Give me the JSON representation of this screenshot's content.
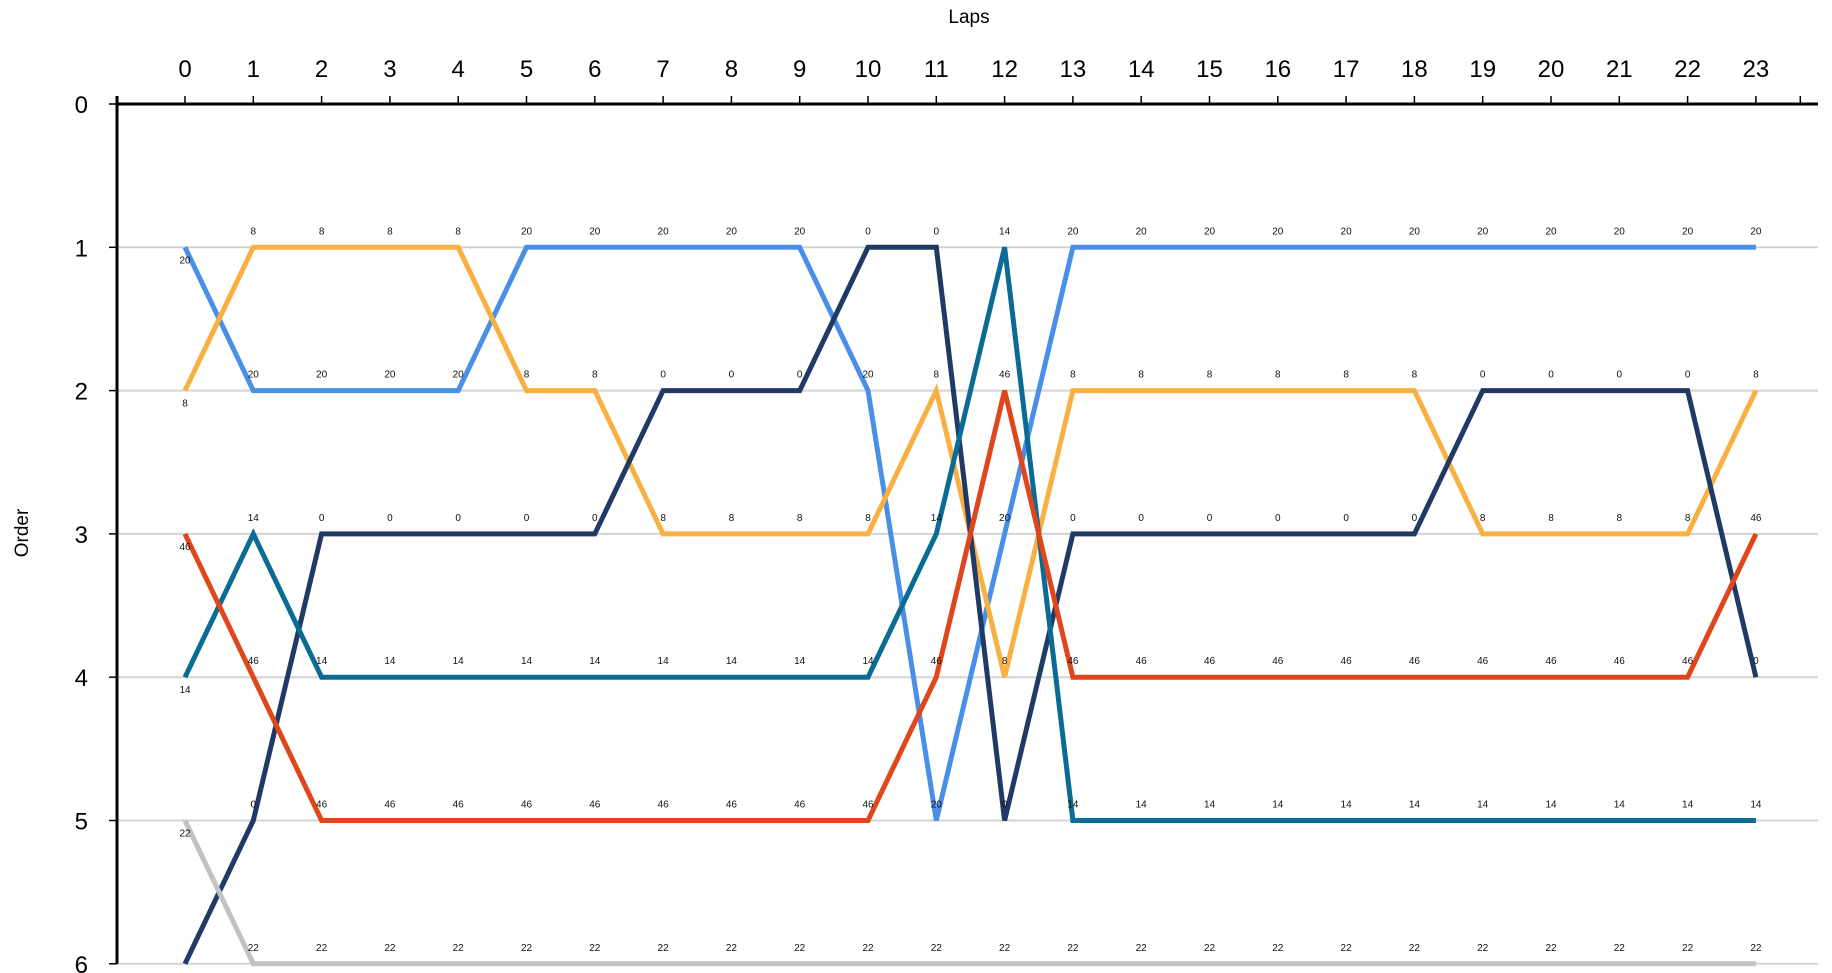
{
  "chart_data": {
    "type": "line",
    "xlabel": "Laps",
    "ylabel": "Order",
    "x": [
      0,
      1,
      2,
      3,
      4,
      5,
      6,
      7,
      8,
      9,
      10,
      11,
      12,
      13,
      14,
      15,
      16,
      17,
      18,
      19,
      20,
      21,
      22,
      23
    ],
    "xlim": [
      0,
      23
    ],
    "ylim": [
      0,
      6
    ],
    "y_inverted": true,
    "y_ticks": [
      0,
      1,
      2,
      3,
      4,
      5,
      6
    ],
    "grid": "horizontal",
    "x_axis_position": "top",
    "series": [
      {
        "color": "#4a8fe7",
        "label": "20",
        "values": [
          1,
          2,
          2,
          2,
          2,
          1,
          1,
          1,
          1,
          1,
          2,
          5,
          3,
          1,
          1,
          1,
          1,
          1,
          1,
          1,
          1,
          1,
          1,
          1
        ]
      },
      {
        "color": "#f9b042",
        "label": "8",
        "values": [
          2,
          1,
          1,
          1,
          1,
          2,
          2,
          3,
          3,
          3,
          3,
          2,
          4,
          2,
          2,
          2,
          2,
          2,
          2,
          3,
          3,
          3,
          3,
          2
        ]
      },
      {
        "color": "#1f3a64",
        "label": "0",
        "values": [
          6,
          5,
          3,
          3,
          3,
          3,
          3,
          2,
          2,
          2,
          1,
          1,
          5,
          3,
          3,
          3,
          3,
          3,
          3,
          2,
          2,
          2,
          2,
          4
        ]
      },
      {
        "color": "#0a6b94",
        "label": "14",
        "values": [
          4,
          3,
          4,
          4,
          4,
          4,
          4,
          4,
          4,
          4,
          4,
          3,
          1,
          5,
          5,
          5,
          5,
          5,
          5,
          5,
          5,
          5,
          5,
          5
        ]
      },
      {
        "color": "#e0461c",
        "label": "46",
        "values": [
          3,
          4,
          5,
          5,
          5,
          5,
          5,
          5,
          5,
          5,
          5,
          4,
          2,
          4,
          4,
          4,
          4,
          4,
          4,
          4,
          4,
          4,
          4,
          3
        ]
      },
      {
        "color": "#c2c2c2",
        "label": "22",
        "values": [
          5,
          6,
          6,
          6,
          6,
          6,
          6,
          6,
          6,
          6,
          6,
          6,
          6,
          6,
          6,
          6,
          6,
          6,
          6,
          6,
          6,
          6,
          6,
          6
        ]
      }
    ]
  }
}
